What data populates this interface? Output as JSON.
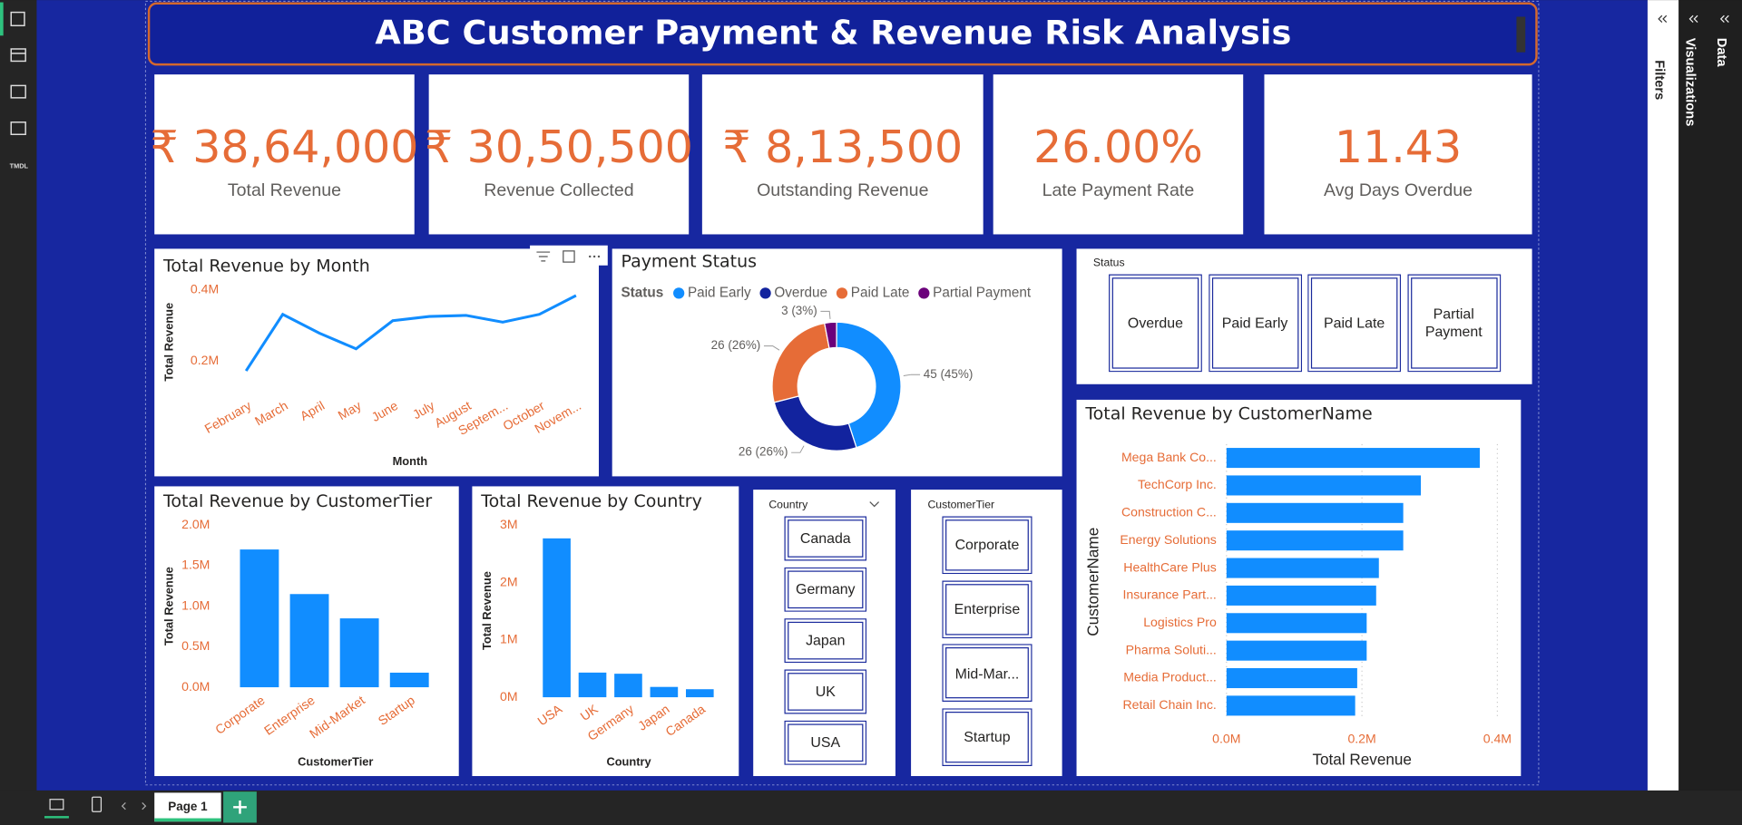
{
  "sidebar": {
    "icon_label": "TMDL"
  },
  "panes": [
    "Filters",
    "Visualizations",
    "Data"
  ],
  "page_tab": "Page 1",
  "header": {
    "title": "ABC Customer Payment & Revenue Risk Analysis"
  },
  "kpis": [
    {
      "value": "₹ 38,64,000",
      "label": "Total Revenue"
    },
    {
      "value": "₹ 30,50,500",
      "label": "Revenue Collected"
    },
    {
      "value": "₹ 8,13,500",
      "label": "Outstanding Revenue"
    },
    {
      "value": "26.00%",
      "label": "Late Payment Rate"
    },
    {
      "value": "11.43",
      "label": "Avg Days Overdue"
    }
  ],
  "chart_data": [
    {
      "type": "line",
      "title": "Total Revenue by Month",
      "xlabel": "Month",
      "ylabel": "Total Revenue",
      "color": "#118DFF",
      "categories": [
        "February",
        "March",
        "April",
        "May",
        "June",
        "July",
        "August",
        "Septem...",
        "October",
        "Novem..."
      ],
      "values": [
        172000,
        331000,
        278000,
        234000,
        313000,
        325000,
        328000,
        309000,
        331000,
        384000
      ],
      "ylim": [
        160000,
        410000
      ],
      "yticks": [
        {
          "value": 200000,
          "label": "0.2M"
        },
        {
          "value": 400000,
          "label": "0.4M"
        }
      ]
    },
    {
      "type": "donut",
      "title": "Payment Status",
      "legend_title": "Status",
      "categories": [
        "Paid Early",
        "Overdue",
        "Paid Late",
        "Partial Payment"
      ],
      "values": [
        45,
        26,
        26,
        3
      ],
      "value_labels": [
        "45 (45%)",
        "26 (26%)",
        "26 (26%)",
        "3 (3%)"
      ],
      "colors": [
        "#118DFF",
        "#12239E",
        "#E66C37",
        "#6B007B"
      ]
    },
    {
      "type": "barh",
      "title": "Total Revenue by CustomerName",
      "xlabel": "Total Revenue",
      "ylabel": "CustomerName",
      "color": "#118DFF",
      "grid": true,
      "categories": [
        "Mega Bank Co...",
        "TechCorp Inc.",
        "Construction C...",
        "Energy Solutions",
        "HealthCare Plus",
        "Insurance Part...",
        "Logistics Pro",
        "Pharma Soluti...",
        "Media Product...",
        "Retail Chain Inc."
      ],
      "values": [
        374000,
        287000,
        261000,
        261000,
        225000,
        221000,
        207000,
        207000,
        193000,
        190000
      ],
      "xlim": [
        0,
        420000
      ],
      "xticks": [
        {
          "value": 0,
          "label": "0.0M"
        },
        {
          "value": 200000,
          "label": "0.2M"
        },
        {
          "value": 400000,
          "label": "0.4M"
        }
      ]
    },
    {
      "type": "bar",
      "title": "Total Revenue by CustomerTier",
      "xlabel": "CustomerTier",
      "ylabel": "Total Revenue",
      "color": "#118DFF",
      "categories": [
        "Corporate",
        "Enterprise",
        "Mid-Market",
        "Startup"
      ],
      "values": [
        1700000,
        1150000,
        850000,
        180000
      ],
      "ylim": [
        0,
        2000000
      ],
      "yticks": [
        {
          "value": 0,
          "label": "0.0M"
        },
        {
          "value": 500000,
          "label": "0.5M"
        },
        {
          "value": 1000000,
          "label": "1.0M"
        },
        {
          "value": 1500000,
          "label": "1.5M"
        },
        {
          "value": 2000000,
          "label": "2.0M"
        }
      ]
    },
    {
      "type": "bar",
      "title": "Total Revenue by Country",
      "xlabel": "Country",
      "ylabel": "Total Revenue",
      "color": "#118DFF",
      "categories": [
        "USA",
        "UK",
        "Germany",
        "Japan",
        "Canada"
      ],
      "values": [
        2770000,
        430000,
        410000,
        180000,
        140000
      ],
      "ylim": [
        0,
        3000000
      ],
      "yticks": [
        {
          "value": 0,
          "label": "0M"
        },
        {
          "value": 1000000,
          "label": "1M"
        },
        {
          "value": 2000000,
          "label": "2M"
        },
        {
          "value": 3000000,
          "label": "3M"
        }
      ]
    }
  ],
  "slicers": [
    {
      "title": "Status",
      "items": [
        "Overdue",
        "Paid Early",
        "Paid Late",
        "Partial Payment"
      ]
    },
    {
      "title": "Country",
      "items": [
        "Canada",
        "Germany",
        "Japan",
        "UK",
        "USA"
      ]
    },
    {
      "title": "CustomerTier",
      "items": [
        "Corporate",
        "Enterprise",
        "Mid-Mar...",
        "Startup"
      ]
    }
  ]
}
